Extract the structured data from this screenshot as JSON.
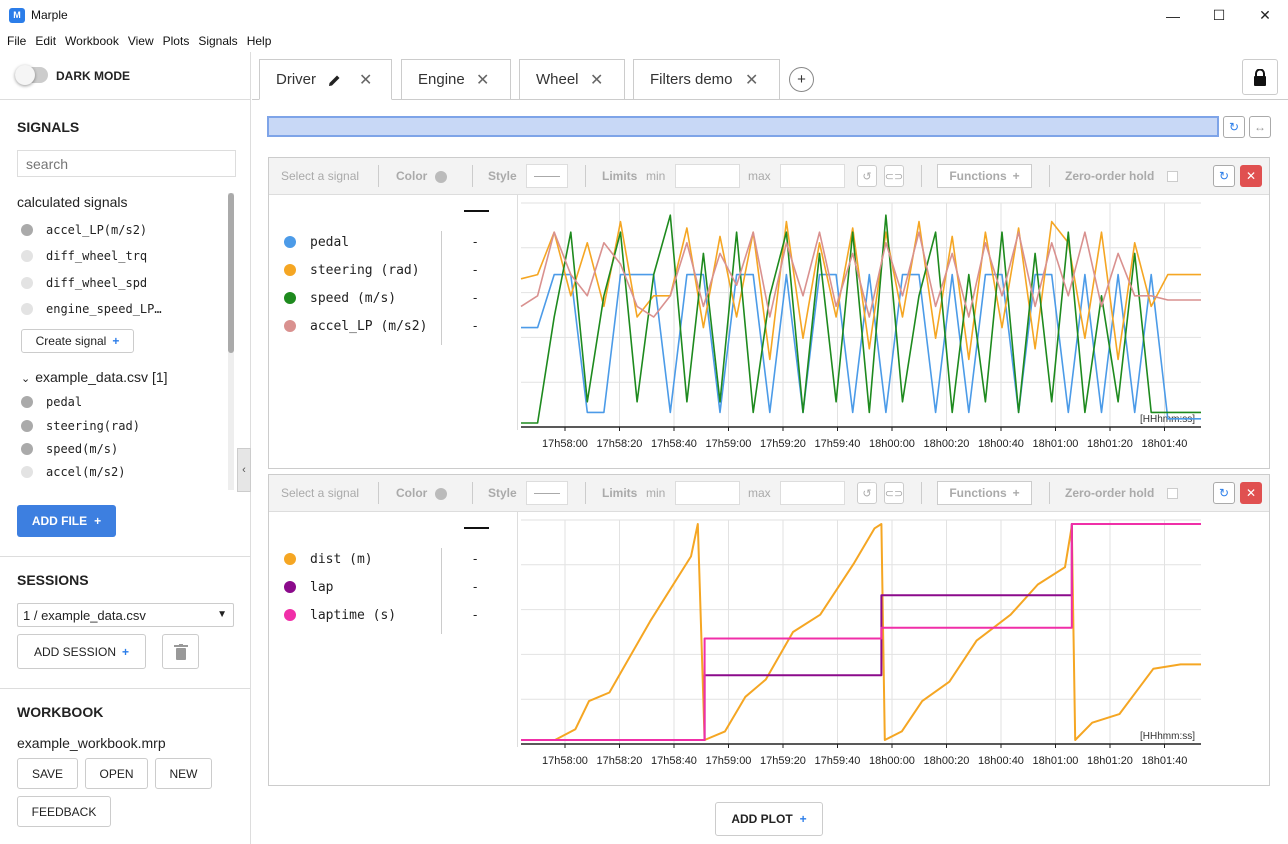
{
  "window": {
    "title": "Marple",
    "logo": "M"
  },
  "menu": [
    "File",
    "Edit",
    "Workbook",
    "View",
    "Plots",
    "Signals",
    "Help"
  ],
  "sidebar": {
    "dark_mode_label": "DARK MODE",
    "signals_title": "SIGNALS",
    "search_placeholder": "search",
    "calculated_title": "calculated signals",
    "calculated": [
      {
        "label": "accel_LP(m/s2)",
        "color": "#aaaaaa"
      },
      {
        "label": "diff_wheel_trq",
        "color": "#e3e3e3"
      },
      {
        "label": "diff_wheel_spd",
        "color": "#e3e3e3"
      },
      {
        "label": "engine_speed_LP…",
        "color": "#e3e3e3"
      }
    ],
    "create_signal_label": "Create signal",
    "file_title": "example_data.csv [1]",
    "file_signals": [
      {
        "label": "pedal",
        "color": "#aaaaaa"
      },
      {
        "label": "steering(rad)",
        "color": "#aaaaaa"
      },
      {
        "label": "speed(m/s)",
        "color": "#aaaaaa"
      },
      {
        "label": "accel(m/s2)",
        "color": "#e3e3e3"
      }
    ],
    "add_file_label": "ADD FILE",
    "sessions_title": "SESSIONS",
    "session_selected": "1 / example_data.csv",
    "add_session_label": "ADD SESSION",
    "workbook_title": "WORKBOOK",
    "workbook_file": "example_workbook.mrp",
    "save_label": "SAVE",
    "open_label": "OPEN",
    "new_label": "NEW",
    "feedback_label": "FEEDBACK"
  },
  "tabs": [
    {
      "label": "Driver",
      "active": true
    },
    {
      "label": "Engine",
      "active": false
    },
    {
      "label": "Wheel",
      "active": false
    },
    {
      "label": "Filters demo",
      "active": false
    }
  ],
  "plot_toolbar": {
    "select_signal": "Select a signal",
    "color": "Color",
    "style": "Style",
    "limits": "Limits",
    "min": "min",
    "max": "max",
    "functions": "Functions",
    "zero_order_hold": "Zero-order hold"
  },
  "add_plot_label": "ADD PLOT",
  "chart_data": [
    {
      "type": "line",
      "title": "",
      "xlabel": "[HHhmm:ss]",
      "ylabel": "",
      "x_ticks": [
        "17h58:00",
        "17h58:20",
        "17h58:40",
        "17h59:00",
        "17h59:20",
        "17h59:40",
        "18h00:00",
        "18h00:20",
        "18h00:40",
        "18h01:00",
        "18h01:20",
        "18h01:40"
      ],
      "legend": [
        {
          "name": "pedal",
          "unit_display": "pedal",
          "color": "#4c9be8",
          "value": "-"
        },
        {
          "name": "steering (rad)",
          "color": "#f5a623",
          "value": "-"
        },
        {
          "name": "speed (m/s)",
          "color": "#1e8a1e",
          "value": "-"
        },
        {
          "name": "accel_LP (m/s2)",
          "color": "#d9918f",
          "value": "-"
        }
      ],
      "series": [
        {
          "name": "pedal",
          "color": "#4c9be8",
          "values": [
            0.45,
            0.45,
            0.7,
            0.7,
            0.05,
            0.05,
            0.7,
            0.7,
            0.7,
            0.05,
            0.7,
            0.7,
            0.05,
            0.7,
            0.7,
            0.05,
            0.7,
            0.05,
            0.7,
            0.7,
            0.05,
            0.7,
            0.05,
            0.7,
            0.7,
            0.05,
            0.7,
            0.05,
            0.7,
            0.7,
            0.05,
            0.7,
            0.7,
            0.05,
            0.7,
            0.05,
            0.7,
            0.05,
            0.7,
            0.02,
            0.02,
            0.02
          ]
        },
        {
          "name": "steering (rad)",
          "color": "#f5a623",
          "values": [
            0.68,
            0.7,
            0.9,
            0.6,
            0.85,
            0.55,
            0.95,
            0.5,
            0.6,
            0.6,
            0.92,
            0.45,
            0.88,
            0.5,
            0.9,
            0.3,
            0.95,
            0.4,
            0.85,
            0.5,
            0.92,
            0.35,
            0.9,
            0.5,
            0.95,
            0.4,
            0.88,
            0.3,
            0.9,
            0.45,
            0.92,
            0.35,
            0.95,
            0.85,
            0.4,
            0.9,
            0.3,
            0.85,
            0.55,
            0.7,
            0.7,
            0.7
          ]
        },
        {
          "name": "speed (m/s)",
          "color": "#1e8a1e",
          "values": [
            0.0,
            0.0,
            0.5,
            0.9,
            0.1,
            0.6,
            0.9,
            0.1,
            0.7,
            0.98,
            0.1,
            0.8,
            0.1,
            0.9,
            0.05,
            0.6,
            0.9,
            0.05,
            0.8,
            0.1,
            0.9,
            0.05,
            0.98,
            0.1,
            0.6,
            0.9,
            0.05,
            0.7,
            0.1,
            0.9,
            0.05,
            0.8,
            0.1,
            0.9,
            0.05,
            0.6,
            0.1,
            0.8,
            0.05,
            0.05,
            0.05,
            0.05
          ]
        },
        {
          "name": "accel_LP (m/s2)",
          "color": "#d9918f",
          "values": [
            0.55,
            0.6,
            0.9,
            0.7,
            0.6,
            0.85,
            0.75,
            0.55,
            0.5,
            0.6,
            0.85,
            0.55,
            0.8,
            0.65,
            0.9,
            0.5,
            0.85,
            0.6,
            0.9,
            0.55,
            0.8,
            0.5,
            0.85,
            0.6,
            0.9,
            0.55,
            0.8,
            0.5,
            0.85,
            0.6,
            0.9,
            0.55,
            0.85,
            0.6,
            0.9,
            0.55,
            0.8,
            0.6,
            0.6,
            0.58,
            0.58,
            0.58
          ]
        }
      ]
    },
    {
      "type": "line",
      "title": "",
      "xlabel": "[HHhmm:ss]",
      "ylabel": "",
      "x_ticks": [
        "17h58:00",
        "17h58:20",
        "17h58:40",
        "17h59:00",
        "17h59:20",
        "17h59:40",
        "18h00:00",
        "18h00:20",
        "18h00:40",
        "18h01:00",
        "18h01:20",
        "18h01:40"
      ],
      "legend": [
        {
          "name": "dist (m)",
          "color": "#f5a623",
          "value": "-"
        },
        {
          "name": "lap",
          "color": "#8b0a8b",
          "value": "-"
        },
        {
          "name": "laptime (s)",
          "color": "#f02fa8",
          "value": "-"
        }
      ],
      "series": [
        {
          "name": "dist (m)",
          "color": "#f5a623",
          "points": [
            [
              0,
              0
            ],
            [
              0.05,
              0
            ],
            [
              0.08,
              0.05
            ],
            [
              0.1,
              0.18
            ],
            [
              0.13,
              0.22
            ],
            [
              0.19,
              0.55
            ],
            [
              0.25,
              0.85
            ],
            [
              0.26,
              1.0
            ],
            [
              0.27,
              0.0
            ],
            [
              0.3,
              0.04
            ],
            [
              0.33,
              0.2
            ],
            [
              0.36,
              0.28
            ],
            [
              0.4,
              0.5
            ],
            [
              0.44,
              0.58
            ],
            [
              0.49,
              0.82
            ],
            [
              0.52,
              0.98
            ],
            [
              0.53,
              1.0
            ],
            [
              0.535,
              0.0
            ],
            [
              0.56,
              0.04
            ],
            [
              0.59,
              0.18
            ],
            [
              0.63,
              0.27
            ],
            [
              0.67,
              0.46
            ],
            [
              0.72,
              0.58
            ],
            [
              0.76,
              0.72
            ],
            [
              0.8,
              0.8
            ],
            [
              0.81,
              0.99
            ],
            [
              0.815,
              0.0
            ],
            [
              0.84,
              0.08
            ],
            [
              0.88,
              0.12
            ],
            [
              0.93,
              0.33
            ],
            [
              0.97,
              0.35
            ],
            [
              1.0,
              0.35
            ]
          ]
        },
        {
          "name": "lap",
          "color": "#8b0a8b",
          "points": [
            [
              0,
              0
            ],
            [
              0.27,
              0
            ],
            [
              0.27,
              0.3
            ],
            [
              0.53,
              0.3
            ],
            [
              0.53,
              0.67
            ],
            [
              0.81,
              0.67
            ],
            [
              0.81,
              1.0
            ],
            [
              1.0,
              1.0
            ]
          ]
        },
        {
          "name": "laptime (s)",
          "color": "#f02fa8",
          "points": [
            [
              0,
              0
            ],
            [
              0.27,
              0
            ],
            [
              0.27,
              0.47
            ],
            [
              0.53,
              0.47
            ],
            [
              0.53,
              0.52
            ],
            [
              0.81,
              0.52
            ],
            [
              0.81,
              1.0
            ],
            [
              1.0,
              1.0
            ]
          ]
        }
      ]
    }
  ]
}
